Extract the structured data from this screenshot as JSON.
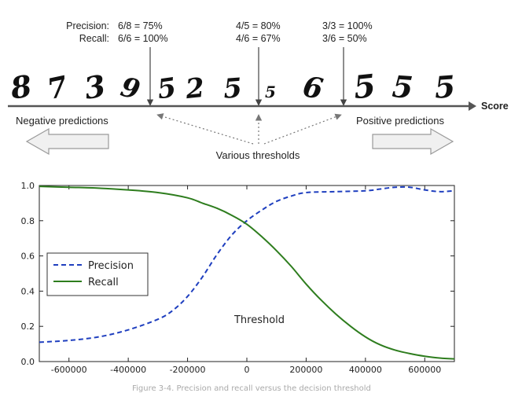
{
  "diagram": {
    "digits": [
      "8",
      "7",
      "3",
      "9",
      "5",
      "2",
      "5",
      "5",
      "6",
      "5",
      "5",
      "5"
    ],
    "precision_label": "Precision:",
    "recall_label": "Recall:",
    "threshold_annotations": [
      {
        "precision": "6/8 = 75%",
        "recall": "6/6 = 100%"
      },
      {
        "precision": "4/5 = 80%",
        "recall": "4/6 = 67%"
      },
      {
        "precision": "3/3 = 100%",
        "recall": "3/6 = 50%"
      }
    ],
    "score_label": "Score",
    "negative_label": "Negative predictions",
    "positive_label": "Positive predictions",
    "thresholds_label": "Various thresholds"
  },
  "caption": "Figure 3-4. Precision and recall versus the decision threshold",
  "chart_data": {
    "type": "line",
    "title": "",
    "xlabel": "Threshold",
    "ylabel": "",
    "xlim": [
      -700000,
      700000
    ],
    "ylim": [
      0,
      1.0
    ],
    "grid": false,
    "legend_position": "center-left",
    "xticks": [
      -600000,
      -400000,
      -200000,
      0,
      200000,
      400000,
      600000
    ],
    "yticks": [
      0.0,
      0.2,
      0.4,
      0.6,
      0.8,
      1.0
    ],
    "series": [
      {
        "name": "Precision",
        "style": "dashed",
        "color": "#1f3fbf",
        "x": [
          -700000,
          -600000,
          -500000,
          -400000,
          -300000,
          -250000,
          -200000,
          -150000,
          -100000,
          -50000,
          0,
          50000,
          100000,
          150000,
          200000,
          300000,
          400000,
          450000,
          500000,
          550000,
          600000,
          650000,
          700000
        ],
        "y": [
          0.11,
          0.12,
          0.14,
          0.18,
          0.24,
          0.29,
          0.37,
          0.48,
          0.61,
          0.72,
          0.8,
          0.86,
          0.91,
          0.94,
          0.96,
          0.965,
          0.97,
          0.98,
          0.99,
          0.99,
          0.975,
          0.965,
          0.97
        ]
      },
      {
        "name": "Recall",
        "style": "solid",
        "color": "#2e7d1e",
        "x": [
          -700000,
          -600000,
          -500000,
          -400000,
          -300000,
          -200000,
          -150000,
          -100000,
          -50000,
          0,
          50000,
          100000,
          150000,
          200000,
          250000,
          300000,
          350000,
          400000,
          450000,
          500000,
          550000,
          600000,
          650000,
          700000
        ],
        "y": [
          0.995,
          0.99,
          0.985,
          0.975,
          0.96,
          0.93,
          0.9,
          0.87,
          0.83,
          0.78,
          0.71,
          0.63,
          0.54,
          0.44,
          0.35,
          0.27,
          0.2,
          0.14,
          0.095,
          0.065,
          0.045,
          0.03,
          0.02,
          0.015
        ]
      }
    ]
  }
}
